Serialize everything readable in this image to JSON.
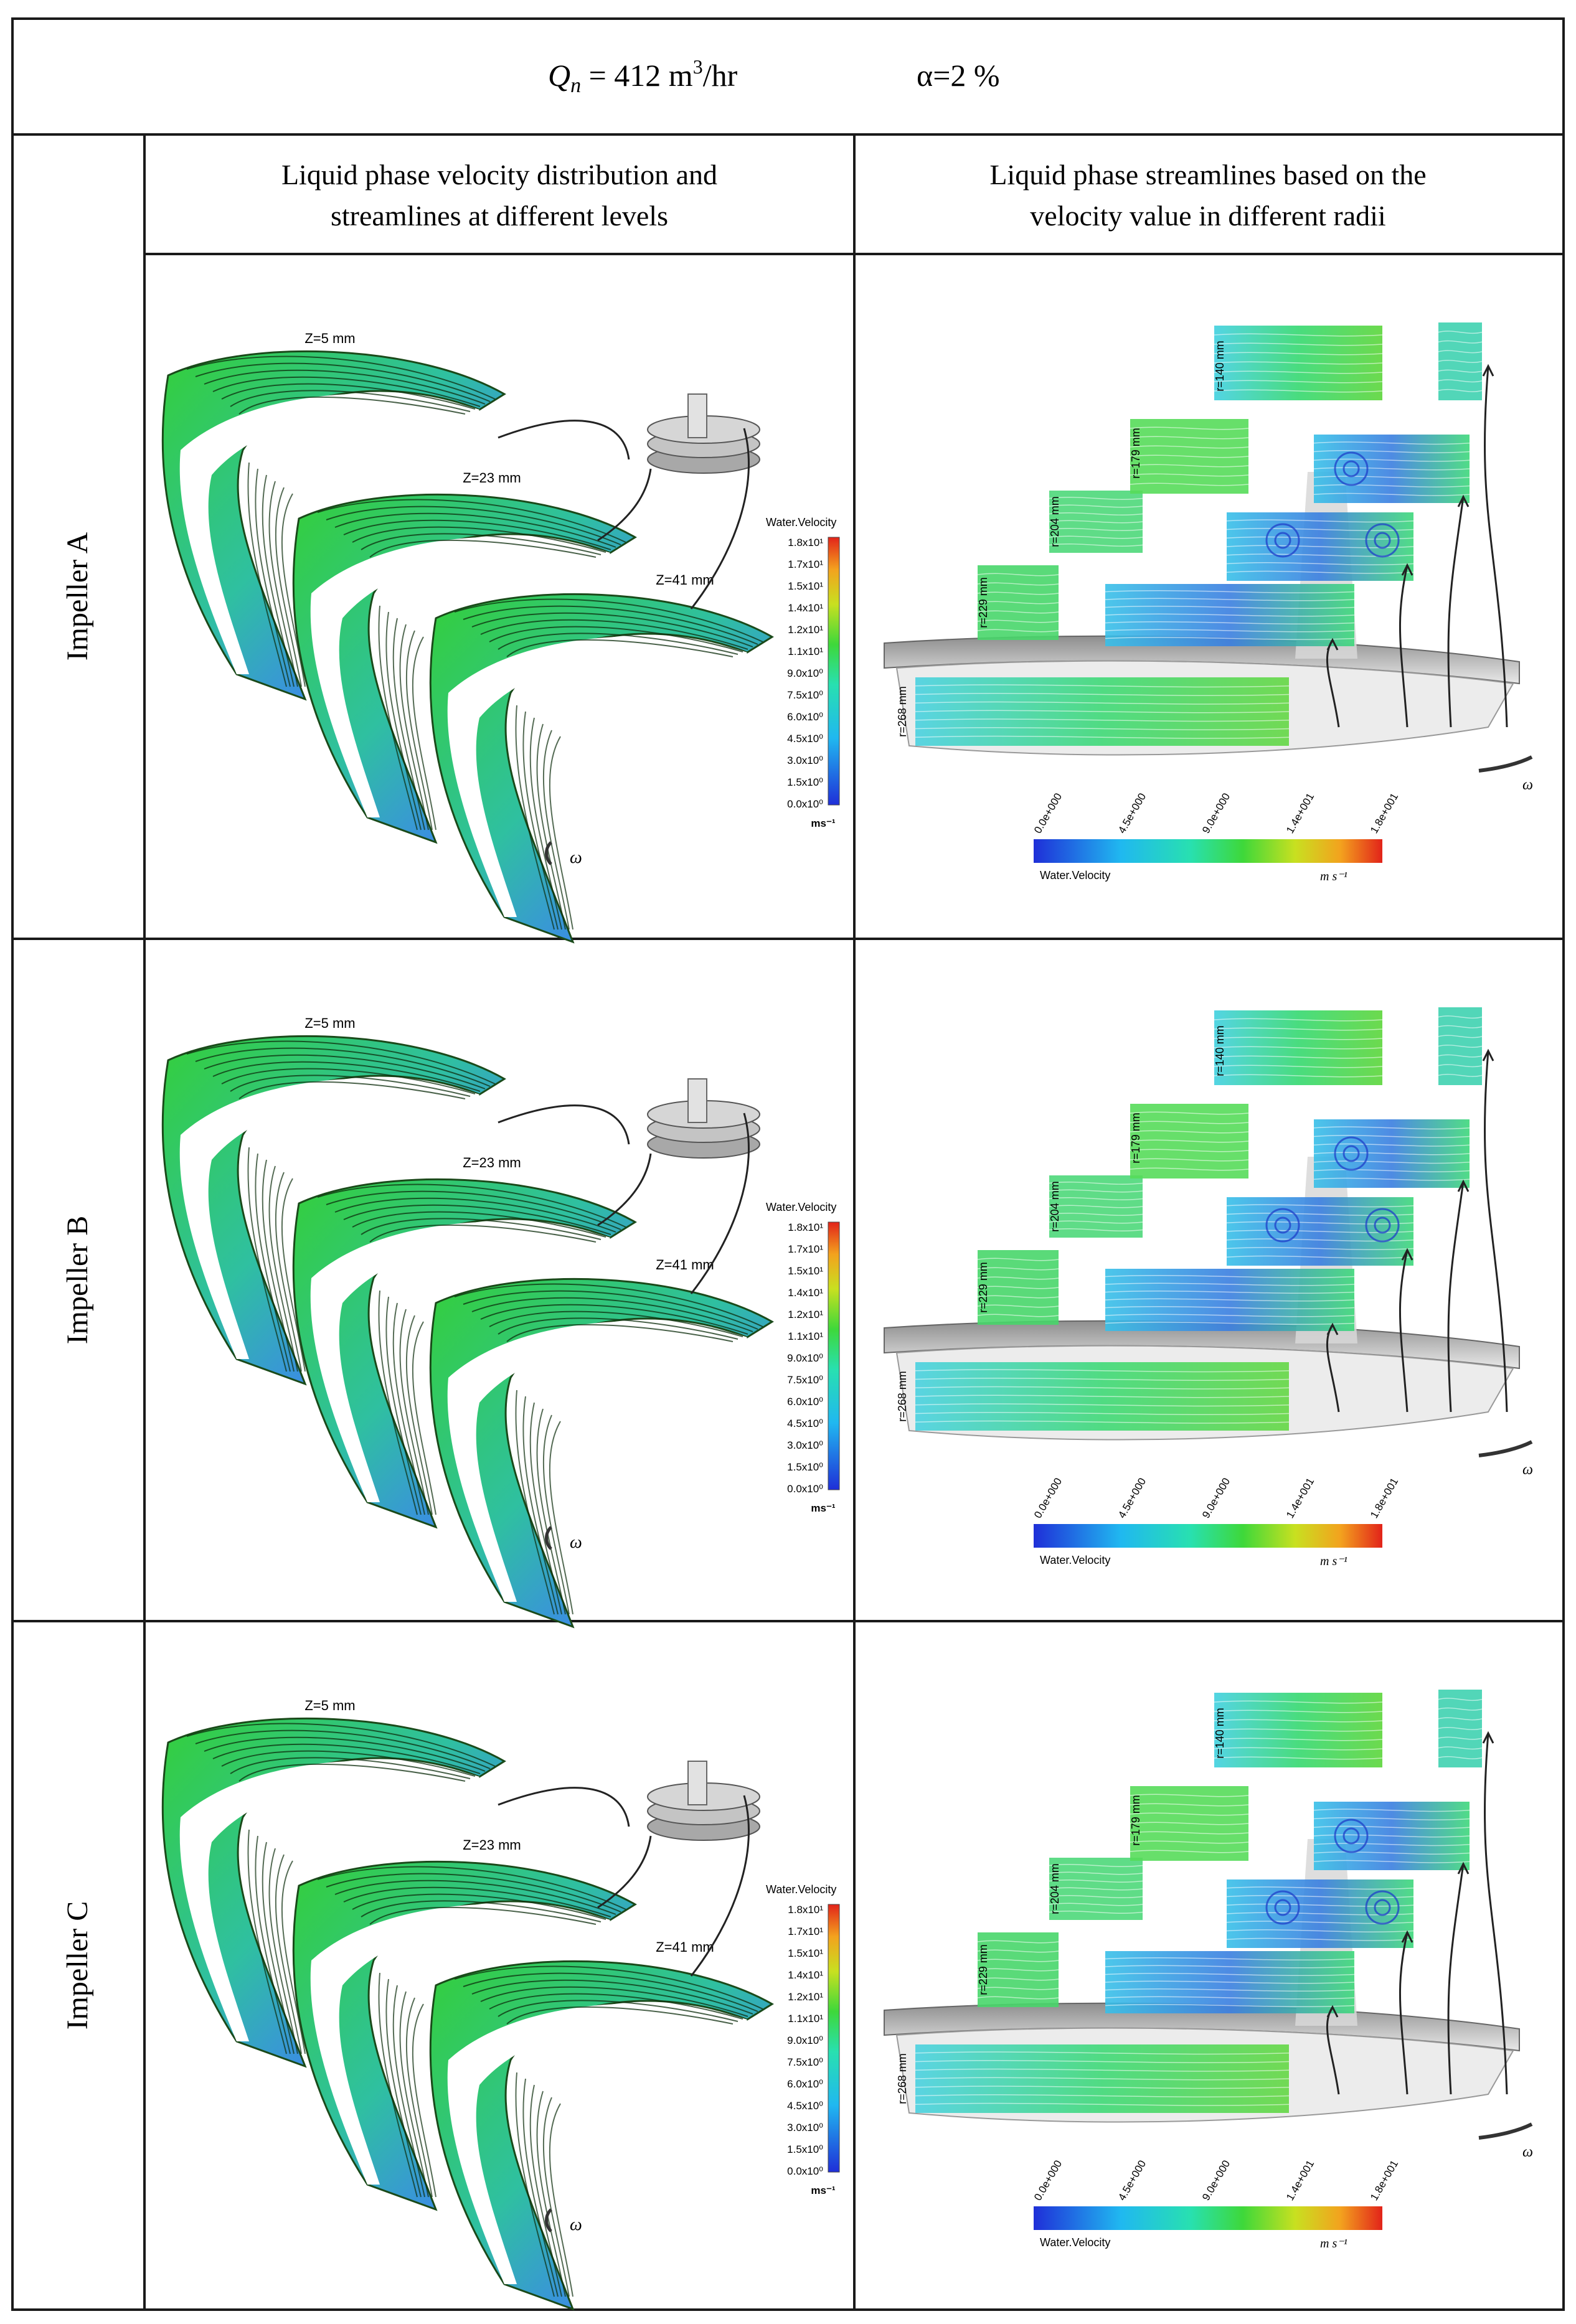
{
  "header": {
    "flow_symbol": "Q",
    "flow_subscript": "n",
    "flow_value": " = 412 m",
    "flow_exponent": "3",
    "flow_unit": "/hr",
    "void_fraction": "α=2 %"
  },
  "columns": [
    {
      "line1": "Liquid phase velocity distribution and",
      "line2": "streamlines at different levels"
    },
    {
      "line1": "Liquid phase streamlines based on the",
      "line2": "velocity value in different radii"
    }
  ],
  "rows": [
    {
      "label": "Impeller A"
    },
    {
      "label": "Impeller B"
    },
    {
      "label": "Impeller C"
    }
  ],
  "levels": [
    "Z=5 mm",
    "Z=23 mm",
    "Z=41 mm"
  ],
  "radii": [
    "r=140 mm",
    "r=179 mm",
    "r=204 mm",
    "r=229 mm",
    "r=268 mm"
  ],
  "left_legend": {
    "title": "Water.Velocity",
    "ticks": [
      "1.8x10¹",
      "1.7x10¹",
      "1.5x10¹",
      "1.4x10¹",
      "1.2x10¹",
      "1.1x10¹",
      "9.0x10⁰",
      "7.5x10⁰",
      "6.0x10⁰",
      "4.5x10⁰",
      "3.0x10⁰",
      "1.5x10⁰",
      "0.0x10⁰"
    ],
    "unit": "ms⁻¹"
  },
  "right_legend": {
    "title": "Water.Velocity",
    "ticks": [
      "0.0e+000",
      "4.5e+000",
      "9.0e+000",
      "1.4e+001",
      "1.8e+001"
    ],
    "unit": "m s⁻¹"
  },
  "omega": "ω",
  "colors": {
    "border": "#1a1a1a",
    "jet_low": "#1f2fd8",
    "jet_mid": "#2be08a",
    "jet_high": "#e2231a",
    "field_green": "#3ecf3a",
    "field_blue": "#3a8fe0",
    "shroud_gray": "#9a9a9a"
  }
}
